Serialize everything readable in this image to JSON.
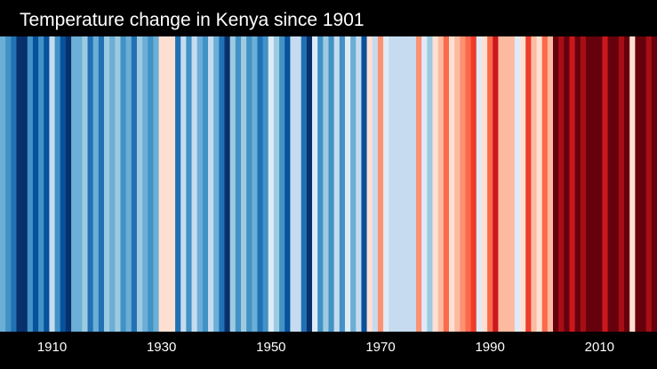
{
  "chart_data": {
    "type": "heatmap",
    "title": "Temperature change in Kenya since 1901",
    "x_start_year": 1901,
    "x_end_year": 2021,
    "tick_labels": [
      "1910",
      "1930",
      "1950",
      "1970",
      "1990",
      "2010"
    ],
    "tick_years": [
      1910,
      1930,
      1950,
      1970,
      1990,
      2010
    ],
    "grid": false,
    "legend": "none",
    "palette": [
      "#08306b",
      "#08519c",
      "#2171b5",
      "#4292c6",
      "#6baed6",
      "#9ecae1",
      "#c6dbef",
      "#deebf7",
      "#fee0d2",
      "#fcbba1",
      "#fc9272",
      "#fb6a4a",
      "#ef3b2c",
      "#cb181d",
      "#a50f15",
      "#67000d"
    ],
    "colors": {
      "background": "#000000",
      "text": "#ffffff"
    },
    "stripe_levels": [
      4,
      3,
      2,
      0,
      0,
      3,
      1,
      3,
      1,
      6,
      3,
      1,
      0,
      4,
      4,
      5,
      2,
      4,
      2,
      5,
      4,
      5,
      3,
      4,
      2,
      5,
      4,
      3,
      4,
      8,
      8,
      8,
      2,
      6,
      3,
      6,
      4,
      3,
      6,
      4,
      2,
      0,
      5,
      3,
      5,
      3,
      4,
      2,
      3,
      7,
      5,
      3,
      1,
      6,
      6,
      2,
      0,
      7,
      3,
      5,
      3,
      6,
      3,
      7,
      4,
      6,
      1,
      8,
      6,
      10,
      7,
      6,
      6,
      6,
      6,
      6,
      10,
      7,
      5,
      8,
      9,
      11,
      8,
      9,
      10,
      11,
      12,
      7,
      8,
      11,
      13,
      9,
      9,
      9,
      7,
      8,
      12,
      9,
      8,
      11,
      9,
      15,
      14,
      15,
      13,
      15,
      14,
      15,
      15,
      15,
      13,
      15,
      15,
      14,
      15,
      8,
      15,
      15,
      14,
      15
    ]
  }
}
